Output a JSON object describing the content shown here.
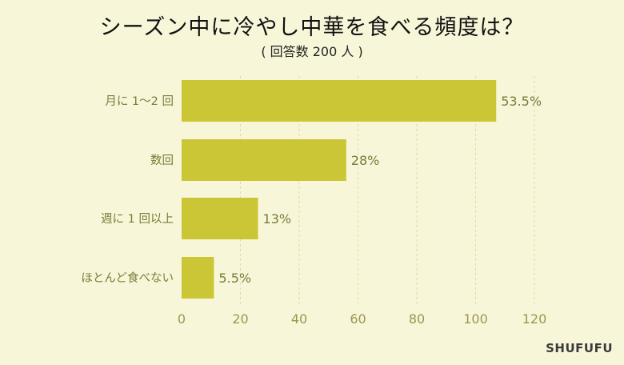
{
  "title": "シーズン中に冷やし中華を食べる頻度は？",
  "subtitle": "( 回答数 200 人 )",
  "brand": "SHUFUFU",
  "colors": {
    "background": "#f8f6d8",
    "bar": "#cbc636",
    "label_text": "#7d7a3a",
    "tick_text": "#9a9650",
    "grid": "#dedbb0"
  },
  "chart_data": {
    "type": "bar",
    "orientation": "horizontal",
    "categories": [
      "月に 1～2 回",
      "数回",
      "週に 1 回以上",
      "ほとんど食べない"
    ],
    "values": [
      107,
      56,
      26,
      11
    ],
    "value_labels": [
      "53.5%",
      "28%",
      "13%",
      "5.5%"
    ],
    "xlim": [
      0,
      120
    ],
    "xticks": [
      0,
      20,
      40,
      60,
      80,
      100,
      120
    ],
    "grid": true
  }
}
